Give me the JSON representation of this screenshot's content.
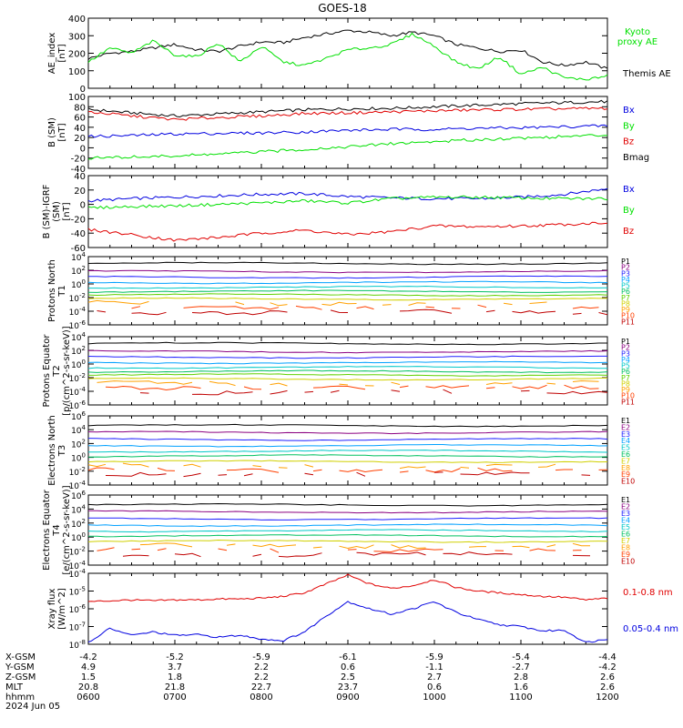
{
  "title": "GOES-18",
  "footer": {
    "date": "2024 Jun 05",
    "rows": [
      {
        "label": "X-GSM",
        "values": [
          "-4.2",
          "-5.2",
          "-5.9",
          "-6.1",
          "-5.9",
          "-5.4",
          "-4.4"
        ]
      },
      {
        "label": "Y-GSM",
        "values": [
          "4.9",
          "3.7",
          "2.2",
          "0.6",
          "-1.1",
          "-2.7",
          "-4.2"
        ]
      },
      {
        "label": "Z-GSM",
        "values": [
          "1.5",
          "1.8",
          "2.2",
          "2.5",
          "2.7",
          "2.8",
          "2.6"
        ]
      },
      {
        "label": "MLT",
        "values": [
          "20.8",
          "21.8",
          "22.7",
          "23.7",
          "0.6",
          "1.6",
          "2.6"
        ]
      },
      {
        "label": "hhmm",
        "values": [
          "0600",
          "0700",
          "0800",
          "0900",
          "1000",
          "1100",
          "1200"
        ]
      }
    ]
  },
  "colors": {
    "black": "#000000",
    "red": "#e00000",
    "green": "#00e000",
    "blue": "#0000e0",
    "P": [
      "#000000",
      "#8b0080",
      "#2020ff",
      "#00a0ff",
      "#00c8c8",
      "#00c060",
      "#60d000",
      "#d0d000",
      "#ffa000",
      "#ff4000",
      "#c00000"
    ],
    "E": [
      "#000000",
      "#8b0080",
      "#2020ff",
      "#00a0ff",
      "#00c8c8",
      "#00c060",
      "#d0d000",
      "#ffa000",
      "#ff4000",
      "#c00000"
    ]
  },
  "chart_data": [
    {
      "type": "line",
      "ylabel": "AE_index [nT]",
      "ylim": [
        0,
        400
      ],
      "yticks": [
        "0",
        "100",
        "200",
        "300",
        "400"
      ],
      "legend": [
        {
          "name": "Kyoto proxy AE",
          "color": "green"
        },
        {
          "name": "Themis AE",
          "color": "black"
        }
      ],
      "x_hours": [
        6.0,
        6.25,
        6.5,
        6.75,
        7.0,
        7.25,
        7.5,
        7.75,
        8.0,
        8.25,
        8.5,
        8.75,
        9.0,
        9.25,
        9.5,
        9.75,
        10.0,
        10.25,
        10.5,
        10.75,
        11.0,
        11.25,
        11.5,
        11.75,
        12.0
      ],
      "series": [
        {
          "name": "Themis AE",
          "color": "black",
          "values": [
            170,
            200,
            210,
            230,
            250,
            220,
            210,
            240,
            265,
            260,
            290,
            310,
            330,
            320,
            300,
            320,
            300,
            250,
            230,
            210,
            220,
            150,
            130,
            150,
            110
          ]
        },
        {
          "name": "Kyoto proxy AE",
          "color": "green",
          "values": [
            150,
            230,
            200,
            270,
            190,
            180,
            260,
            150,
            240,
            150,
            130,
            170,
            220,
            230,
            250,
            310,
            240,
            150,
            110,
            180,
            80,
            120,
            60,
            50,
            70
          ]
        }
      ]
    },
    {
      "type": "line",
      "ylabel": "B (SM) [nT]",
      "ylim": [
        -40,
        100
      ],
      "yticks": [
        "-40",
        "-20",
        "0",
        "20",
        "40",
        "60",
        "80",
        "100"
      ],
      "legend": [
        {
          "name": "Bx",
          "color": "blue"
        },
        {
          "name": "By",
          "color": "green"
        },
        {
          "name": "Bz",
          "color": "red"
        },
        {
          "name": "Bmag",
          "color": "black"
        }
      ],
      "x_hours": [
        6.0,
        6.5,
        7.0,
        7.5,
        8.0,
        8.5,
        9.0,
        9.5,
        10.0,
        10.5,
        11.0,
        11.5,
        12.0
      ],
      "series": [
        {
          "name": "Bmag",
          "color": "black",
          "values": [
            75,
            68,
            62,
            66,
            70,
            74,
            76,
            77,
            80,
            83,
            86,
            88,
            90
          ]
        },
        {
          "name": "Bz",
          "color": "red",
          "values": [
            70,
            62,
            55,
            59,
            62,
            67,
            68,
            70,
            72,
            74,
            75,
            76,
            77
          ]
        },
        {
          "name": "Bx",
          "color": "blue",
          "values": [
            22,
            24,
            27,
            28,
            29,
            31,
            34,
            36,
            36,
            38,
            39,
            41,
            43
          ]
        },
        {
          "name": "By",
          "color": "green",
          "values": [
            -20,
            -18,
            -16,
            -12,
            -8,
            -3,
            2,
            8,
            12,
            16,
            19,
            22,
            25
          ]
        }
      ]
    },
    {
      "type": "line",
      "ylabel": "B (SM)-IGRF (SM) [nT]",
      "ylim": [
        -60,
        40
      ],
      "yticks": [
        "-60",
        "-40",
        "-20",
        "0",
        "20",
        "40"
      ],
      "legend": [
        {
          "name": "Bx",
          "color": "blue"
        },
        {
          "name": "By",
          "color": "green"
        },
        {
          "name": "Bz",
          "color": "red"
        }
      ],
      "x_hours": [
        6.0,
        6.5,
        7.0,
        7.5,
        8.0,
        8.5,
        9.0,
        9.5,
        10.0,
        10.5,
        11.0,
        11.5,
        12.0
      ],
      "series": [
        {
          "name": "Bx",
          "color": "blue",
          "values": [
            5,
            8,
            10,
            12,
            14,
            15,
            11,
            9,
            8,
            8,
            10,
            14,
            22
          ]
        },
        {
          "name": "By",
          "color": "green",
          "values": [
            -5,
            -3,
            -2,
            0,
            2,
            5,
            2,
            8,
            10,
            10,
            9,
            8,
            8
          ]
        },
        {
          "name": "Bz",
          "color": "red",
          "values": [
            -35,
            -42,
            -50,
            -46,
            -40,
            -36,
            -42,
            -38,
            -30,
            -31,
            -30,
            -28,
            -25
          ]
        }
      ]
    },
    {
      "type": "line",
      "ylabel": "Protons North T1",
      "ylog": true,
      "ylim_exp": [
        -6,
        4
      ],
      "yticks": [
        "10^-6",
        "10^-4",
        "10^-2",
        "10^0",
        "10^2",
        "10^4"
      ],
      "channels": [
        "P1",
        "P2",
        "P3",
        "P4",
        "P5",
        "P6",
        "P7",
        "P8",
        "P9",
        "P10",
        "P11"
      ],
      "levels_exp": [
        3.0,
        1.8,
        1.0,
        0.2,
        -0.5,
        -1.1,
        -1.6,
        -2.2,
        -3.0,
        -3.6,
        -4.3
      ]
    },
    {
      "type": "line",
      "ylabel": "Protons Equator T2 [p/(cm^2-s-sr-keV)]",
      "ylog": true,
      "ylim_exp": [
        -6,
        4
      ],
      "yticks": [
        "10^-6",
        "10^-4",
        "10^-2",
        "10^0",
        "10^2",
        "10^4"
      ],
      "channels": [
        "P1",
        "P2",
        "P3",
        "P4",
        "P5",
        "P6",
        "P7",
        "P8",
        "P9",
        "P10",
        "P11"
      ],
      "levels_exp": [
        3.0,
        1.8,
        1.0,
        0.2,
        -0.5,
        -1.1,
        -1.6,
        -2.2,
        -3.0,
        -3.6,
        -4.3
      ]
    },
    {
      "type": "line",
      "ylabel": "Electrons North T3",
      "ylog": true,
      "ylim_exp": [
        -4,
        6
      ],
      "yticks": [
        "10^-4",
        "10^-2",
        "10^0",
        "10^2",
        "10^4",
        "10^6"
      ],
      "channels": [
        "E1",
        "E2",
        "E3",
        "E4",
        "E5",
        "E6",
        "E7",
        "E8",
        "E9",
        "E10"
      ],
      "levels_exp": [
        4.6,
        3.6,
        2.6,
        1.7,
        0.9,
        0.2,
        -0.6,
        -1.4,
        -2.0,
        -2.6
      ]
    },
    {
      "type": "line",
      "ylabel": "Electrons Equator T4 [e/(cm^2-s-sr-keV)]",
      "ylog": true,
      "ylim_exp": [
        -4,
        6
      ],
      "yticks": [
        "10^-4",
        "10^-2",
        "10^0",
        "10^2",
        "10^4",
        "10^6"
      ],
      "channels": [
        "E1",
        "E2",
        "E3",
        "E4",
        "E5",
        "E6",
        "E7",
        "E8",
        "E9",
        "E10"
      ],
      "levels_exp": [
        4.6,
        3.6,
        2.6,
        1.7,
        0.9,
        0.2,
        -0.6,
        -1.4,
        -2.0,
        -2.6
      ]
    },
    {
      "type": "line",
      "ylabel": "Xray flux [W/m^2]",
      "ylog": true,
      "ylim_exp": [
        -8,
        -4
      ],
      "yticks": [
        "10^-8",
        "10^-7",
        "10^-6",
        "10^-5",
        "10^-4"
      ],
      "legend": [
        {
          "name": "0.1-0.8 nm",
          "color": "red"
        },
        {
          "name": "0.05-0.4 nm",
          "color": "blue"
        }
      ],
      "x_hours": [
        6.0,
        6.25,
        6.5,
        6.75,
        7.0,
        7.25,
        7.5,
        7.75,
        8.0,
        8.25,
        8.5,
        8.75,
        9.0,
        9.25,
        9.5,
        9.75,
        10.0,
        10.25,
        10.5,
        10.75,
        11.0,
        11.25,
        11.5,
        11.75,
        12.0
      ],
      "series": [
        {
          "name": "0.1-0.8 nm",
          "color": "red",
          "values": [
            -5.6,
            -5.55,
            -5.5,
            -5.55,
            -5.5,
            -5.5,
            -5.45,
            -5.45,
            -5.4,
            -5.3,
            -5.1,
            -4.6,
            -4.1,
            -4.6,
            -4.85,
            -4.7,
            -4.35,
            -4.8,
            -5.0,
            -5.1,
            -5.2,
            -5.3,
            -5.35,
            -5.5,
            -5.4
          ]
        },
        {
          "name": "0.05-0.4 nm",
          "color": "blue",
          "values": [
            -7.9,
            -7.1,
            -7.5,
            -7.3,
            -7.5,
            -7.45,
            -7.6,
            -7.5,
            -7.7,
            -7.8,
            -7.3,
            -6.4,
            -5.6,
            -6.0,
            -6.3,
            -6.0,
            -5.6,
            -6.2,
            -6.6,
            -6.9,
            -7.0,
            -7.25,
            -7.2,
            -7.9,
            -7.7
          ]
        }
      ]
    }
  ]
}
